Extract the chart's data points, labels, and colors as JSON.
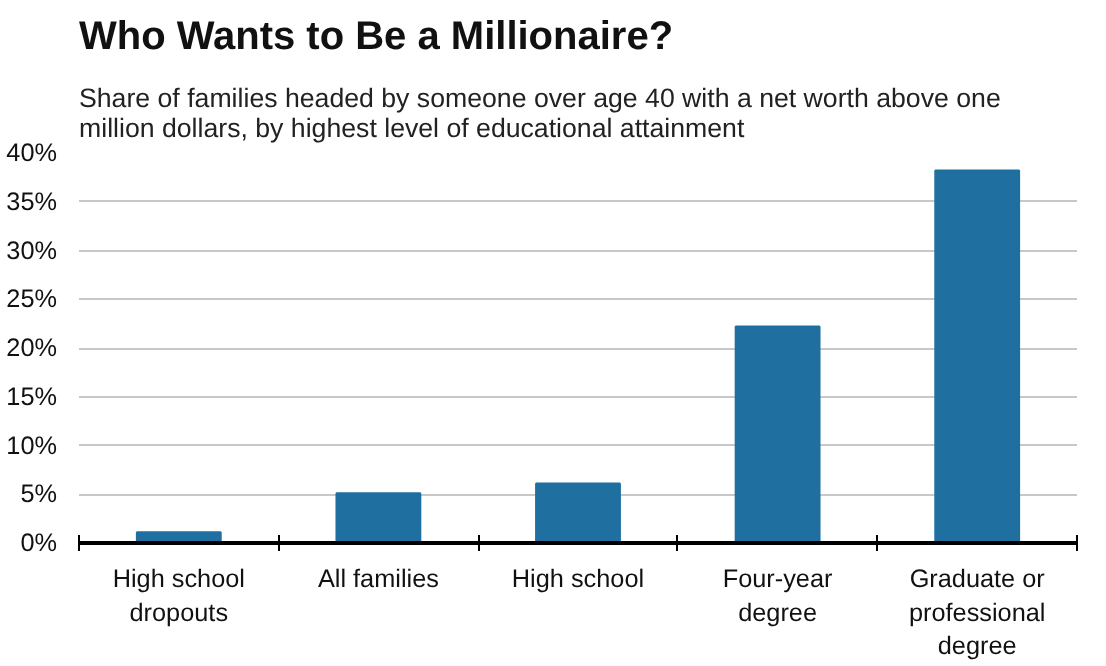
{
  "chart_data": {
    "type": "bar",
    "title": "Who Wants to Be a Millionaire?",
    "subtitle": "Share of families headed by someone over age 40 with a net worth above one million dollars, by highest level of educational attainment",
    "categories": [
      "High school dropouts",
      "All families",
      "High school",
      "Four-year degree",
      "Graduate or professional degree"
    ],
    "values": [
      1.1,
      5.1,
      6.1,
      22.2,
      38.2
    ],
    "color": "#1f6fa0",
    "ylim": [
      0,
      40
    ],
    "yticks": [
      {
        "value": 0,
        "label": "0%"
      },
      {
        "value": 5,
        "label": "5%"
      },
      {
        "value": 10,
        "label": "10%"
      },
      {
        "value": 15,
        "label": "15%"
      },
      {
        "value": 20,
        "label": "20%"
      },
      {
        "value": 25,
        "label": "25%"
      },
      {
        "value": 30,
        "label": "30%"
      },
      {
        "value": 35,
        "label": "35%"
      },
      {
        "value": 40,
        "label": "40%"
      }
    ],
    "grid": "y"
  }
}
